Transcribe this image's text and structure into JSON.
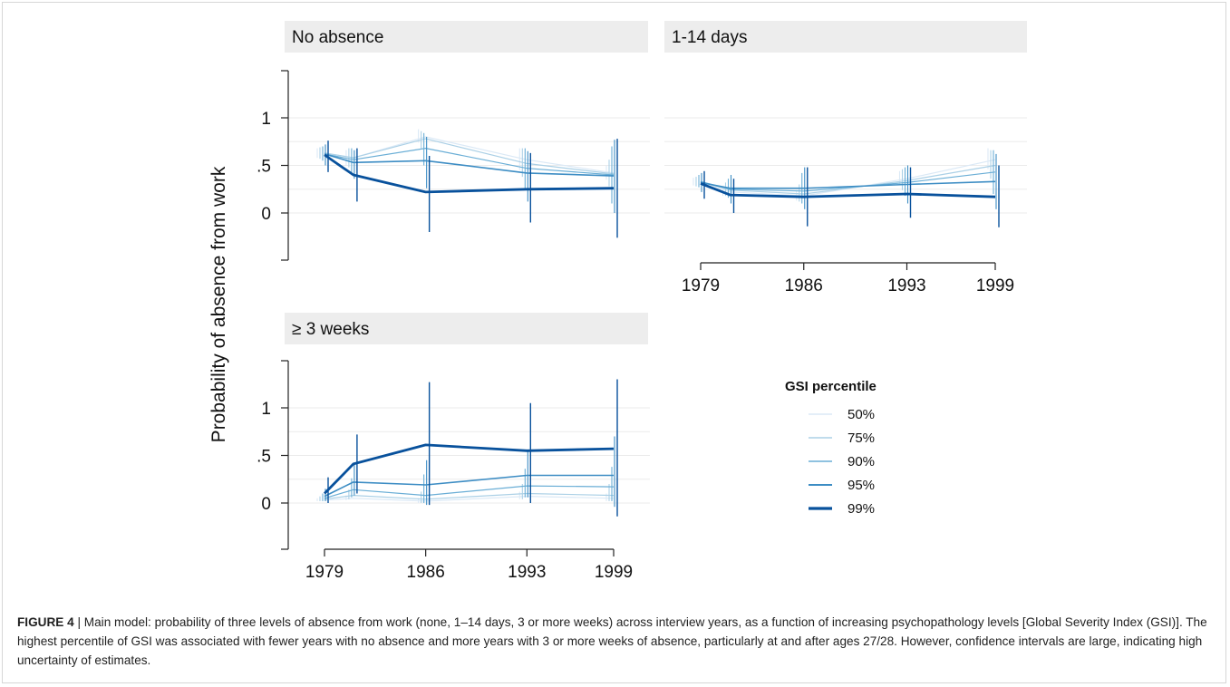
{
  "figure": {
    "caption_label": "FIGURE 4",
    "caption_text": " | Main model: probability of three levels of absence from work (none, 1–14 days, 3 or more weeks) across interview years, as a function of increasing psychopathology levels [Global Severity Index (GSI)]. The highest percentile of GSI was associated with fewer years with no absence and more years with 3 or more weeks of absence, particularly at and after ages 27/28. However, confidence intervals are large, indicating high uncertainty of estimates."
  },
  "colors": {
    "p50": "#dbe9f6",
    "p75": "#abd0e6",
    "p90": "#6aaed6",
    "p95": "#3d8dc4",
    "p99": "#08519c",
    "panel_header_bg": "#ededed",
    "grid": "#ebebeb"
  },
  "chart_data": {
    "type": "line",
    "ylabel": "Probability of absence from work",
    "x_tick_labels": [
      "1979",
      "1986",
      "1993",
      "1999"
    ],
    "x": [
      1979,
      1981,
      1986,
      1993,
      1999
    ],
    "y_ticks": [
      0,
      0.5,
      1
    ],
    "y_tick_labels": [
      "0",
      ".5",
      "1"
    ],
    "ylim": [
      -0.5,
      1.5
    ],
    "legend": {
      "title": "GSI percentile",
      "placement": "right",
      "entries": [
        "50%",
        "75%",
        "90%",
        "95%",
        "99%"
      ]
    },
    "panels": [
      {
        "title": "No absence",
        "series": [
          {
            "name": "50%",
            "values": [
              0.63,
              0.58,
              0.8,
              0.56,
              0.42
            ],
            "ci_low": [
              0.58,
              0.5,
              0.74,
              0.45,
              0.35
            ],
            "ci_high": [
              0.68,
              0.66,
              0.88,
              0.68,
              0.5
            ]
          },
          {
            "name": "75%",
            "values": [
              0.63,
              0.58,
              0.78,
              0.52,
              0.41
            ],
            "ci_low": [
              0.57,
              0.48,
              0.68,
              0.38,
              0.28
            ],
            "ci_high": [
              0.69,
              0.68,
              0.86,
              0.68,
              0.56
            ]
          },
          {
            "name": "90%",
            "values": [
              0.62,
              0.56,
              0.68,
              0.47,
              0.4
            ],
            "ci_low": [
              0.55,
              0.42,
              0.5,
              0.25,
              0.1
            ],
            "ci_high": [
              0.7,
              0.68,
              0.84,
              0.68,
              0.7
            ]
          },
          {
            "name": "95%",
            "values": [
              0.62,
              0.53,
              0.55,
              0.42,
              0.39
            ],
            "ci_low": [
              0.5,
              0.36,
              0.26,
              0.12,
              0.0
            ],
            "ci_high": [
              0.72,
              0.66,
              0.8,
              0.65,
              0.77
            ]
          },
          {
            "name": "99%",
            "values": [
              0.61,
              0.4,
              0.22,
              0.25,
              0.26
            ],
            "ci_low": [
              0.43,
              0.12,
              -0.2,
              -0.1,
              -0.26
            ],
            "ci_high": [
              0.76,
              0.68,
              0.6,
              0.63,
              0.78
            ]
          }
        ]
      },
      {
        "title": "1-14 days",
        "series": [
          {
            "name": "50%",
            "values": [
              0.33,
              0.22,
              0.18,
              0.36,
              0.56
            ],
            "ci_low": [
              0.29,
              0.18,
              0.13,
              0.3,
              0.46
            ],
            "ci_high": [
              0.37,
              0.28,
              0.24,
              0.44,
              0.68
            ]
          },
          {
            "name": "75%",
            "values": [
              0.33,
              0.24,
              0.2,
              0.34,
              0.5
            ],
            "ci_low": [
              0.28,
              0.18,
              0.12,
              0.24,
              0.36
            ],
            "ci_high": [
              0.38,
              0.32,
              0.3,
              0.46,
              0.66
            ]
          },
          {
            "name": "90%",
            "values": [
              0.33,
              0.25,
              0.23,
              0.32,
              0.43
            ],
            "ci_low": [
              0.27,
              0.16,
              0.1,
              0.18,
              0.2
            ],
            "ci_high": [
              0.4,
              0.36,
              0.42,
              0.48,
              0.66
            ]
          },
          {
            "name": "95%",
            "values": [
              0.32,
              0.26,
              0.26,
              0.3,
              0.33
            ],
            "ci_low": [
              0.22,
              0.1,
              0.04,
              0.1,
              0.04
            ],
            "ci_high": [
              0.42,
              0.4,
              0.48,
              0.5,
              0.62
            ]
          },
          {
            "name": "99%",
            "values": [
              0.31,
              0.19,
              0.17,
              0.2,
              0.17
            ],
            "ci_low": [
              0.15,
              0.0,
              -0.14,
              -0.05,
              -0.15
            ],
            "ci_high": [
              0.44,
              0.36,
              0.48,
              0.48,
              0.5
            ]
          }
        ]
      },
      {
        "title": "≥ 3 weeks",
        "series": [
          {
            "name": "50%",
            "values": [
              0.03,
              0.05,
              0.02,
              0.07,
              0.05
            ],
            "ci_low": [
              0.02,
              0.03,
              0.0,
              0.04,
              0.02
            ],
            "ci_high": [
              0.05,
              0.08,
              0.05,
              0.12,
              0.1
            ]
          },
          {
            "name": "75%",
            "values": [
              0.04,
              0.08,
              0.04,
              0.1,
              0.08
            ],
            "ci_low": [
              0.02,
              0.04,
              0.0,
              0.04,
              0.02
            ],
            "ci_high": [
              0.07,
              0.14,
              0.12,
              0.2,
              0.2
            ]
          },
          {
            "name": "90%",
            "values": [
              0.05,
              0.14,
              0.08,
              0.18,
              0.17
            ],
            "ci_low": [
              0.02,
              0.06,
              0.0,
              0.06,
              0.02
            ],
            "ci_high": [
              0.1,
              0.26,
              0.3,
              0.36,
              0.38
            ]
          },
          {
            "name": "95%",
            "values": [
              0.07,
              0.22,
              0.19,
              0.29,
              0.29
            ],
            "ci_low": [
              0.02,
              0.08,
              -0.02,
              0.06,
              -0.04
            ],
            "ci_high": [
              0.15,
              0.4,
              0.45,
              0.55,
              0.7
            ]
          },
          {
            "name": "99%",
            "values": [
              0.1,
              0.41,
              0.61,
              0.55,
              0.57
            ],
            "ci_low": [
              0.0,
              0.1,
              -0.02,
              0.0,
              -0.14
            ],
            "ci_high": [
              0.27,
              0.72,
              1.27,
              1.05,
              1.3
            ]
          }
        ]
      }
    ]
  }
}
